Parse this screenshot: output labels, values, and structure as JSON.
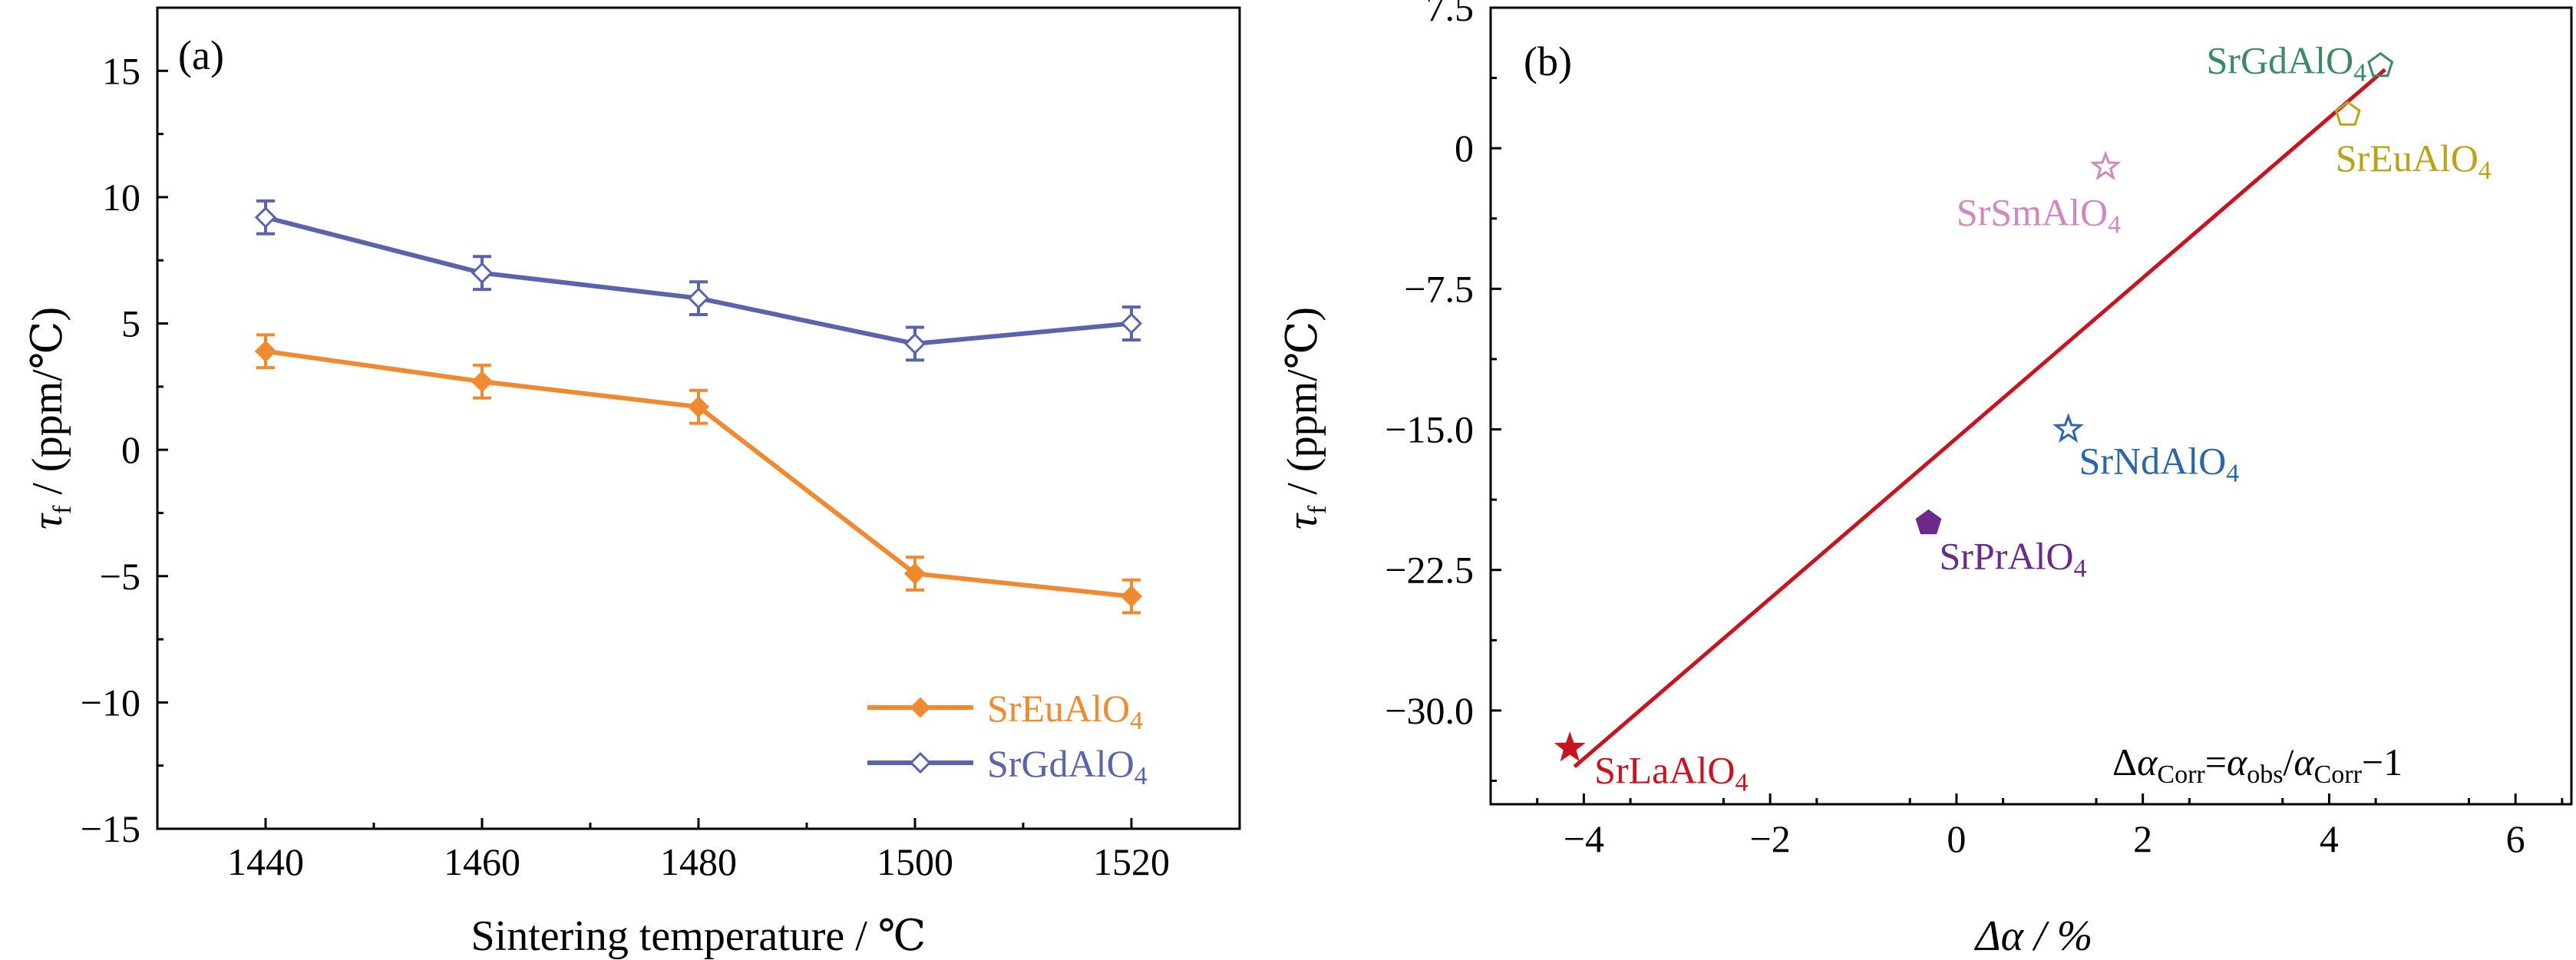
{
  "chart_data": [
    {
      "panel_label": "(a)",
      "type": "line",
      "xlabel": "Sintering temperature / ℃",
      "ylabel_main": "τ",
      "ylabel_sub": "f",
      "ylabel_rest": " / (ppm/℃)",
      "x": [
        1440,
        1460,
        1480,
        1500,
        1520
      ],
      "xticks": [
        1440,
        1460,
        1480,
        1500,
        1520
      ],
      "xlim": [
        1430,
        1530
      ],
      "yticks": [
        15,
        10,
        5,
        0,
        -5,
        -10,
        -15
      ],
      "ylim": [
        -15,
        17.5
      ],
      "legend_position": "lower-right",
      "grid": false,
      "series": [
        {
          "name_main": "SrEuAlO",
          "name_sub": "4",
          "color": "#f08a30",
          "values": [
            3.9,
            2.7,
            1.7,
            -4.9,
            -5.8
          ],
          "error": [
            0.65,
            0.65,
            0.65,
            0.65,
            0.65
          ]
        },
        {
          "name_main": "SrGdAlO",
          "name_sub": "4",
          "color": "#5b63ad",
          "values": [
            9.2,
            7.0,
            6.0,
            4.2,
            5.0
          ],
          "error": [
            0.65,
            0.65,
            0.65,
            0.65,
            0.65
          ]
        }
      ]
    },
    {
      "panel_label": "(b)",
      "type": "scatter",
      "xlabel": "Δα / %",
      "ylabel_main": "τ",
      "ylabel_sub": "f",
      "ylabel_rest": " / (ppm/℃)",
      "xticks": [
        -4,
        -2,
        0,
        2,
        4,
        6
      ],
      "xtick_labels": [
        "−4",
        "−2",
        "0",
        "2",
        "4",
        "6"
      ],
      "xlim": [
        -5,
        6.6
      ],
      "yticks": [
        7.5,
        0,
        -7.5,
        -15.0,
        -22.5,
        -30.0
      ],
      "ytick_labels": [
        "7.5",
        "0",
        "−7.5",
        "−15.0",
        "−22.5",
        "−30.0"
      ],
      "ylim": [
        -35,
        7.5
      ],
      "grid": false,
      "fit_line": {
        "color": "#c8141e",
        "from": [
          -4.1,
          -33.0
        ],
        "to": [
          4.6,
          4.2
        ]
      },
      "points": [
        {
          "name_main": "SrGdAlO",
          "name_sub": "4",
          "x": 4.55,
          "y": 4.4,
          "marker": "pentagon-open",
          "color": "#3a8a62"
        },
        {
          "name_main": "SrEuAlO",
          "name_sub": "4",
          "x": 4.2,
          "y": 1.8,
          "marker": "pentagon-open",
          "color": "#b9a319"
        },
        {
          "name_main": "SrSmAlO",
          "name_sub": "4",
          "x": 1.6,
          "y": -1.0,
          "marker": "star-open",
          "color": "#d088c0"
        },
        {
          "name_main": "SrNdAlO",
          "name_sub": "4",
          "x": 1.2,
          "y": -15.0,
          "marker": "star-open",
          "color": "#2a67a8"
        },
        {
          "name_main": "SrPrAlO",
          "name_sub": "4",
          "x": -0.3,
          "y": -20.0,
          "marker": "pentagon-filled",
          "color": "#6b2a8a"
        },
        {
          "name_main": "SrLaAlO",
          "name_sub": "4",
          "x": -4.15,
          "y": -32.0,
          "marker": "star-filled",
          "color": "#c8141e"
        }
      ],
      "annotation": {
        "delta": "Δ",
        "alpha": "α",
        "sub_corr": "Corr",
        "eq": "=",
        "sub_obs": "obs",
        "slash": "/",
        "minus_one": "−1"
      }
    }
  ]
}
